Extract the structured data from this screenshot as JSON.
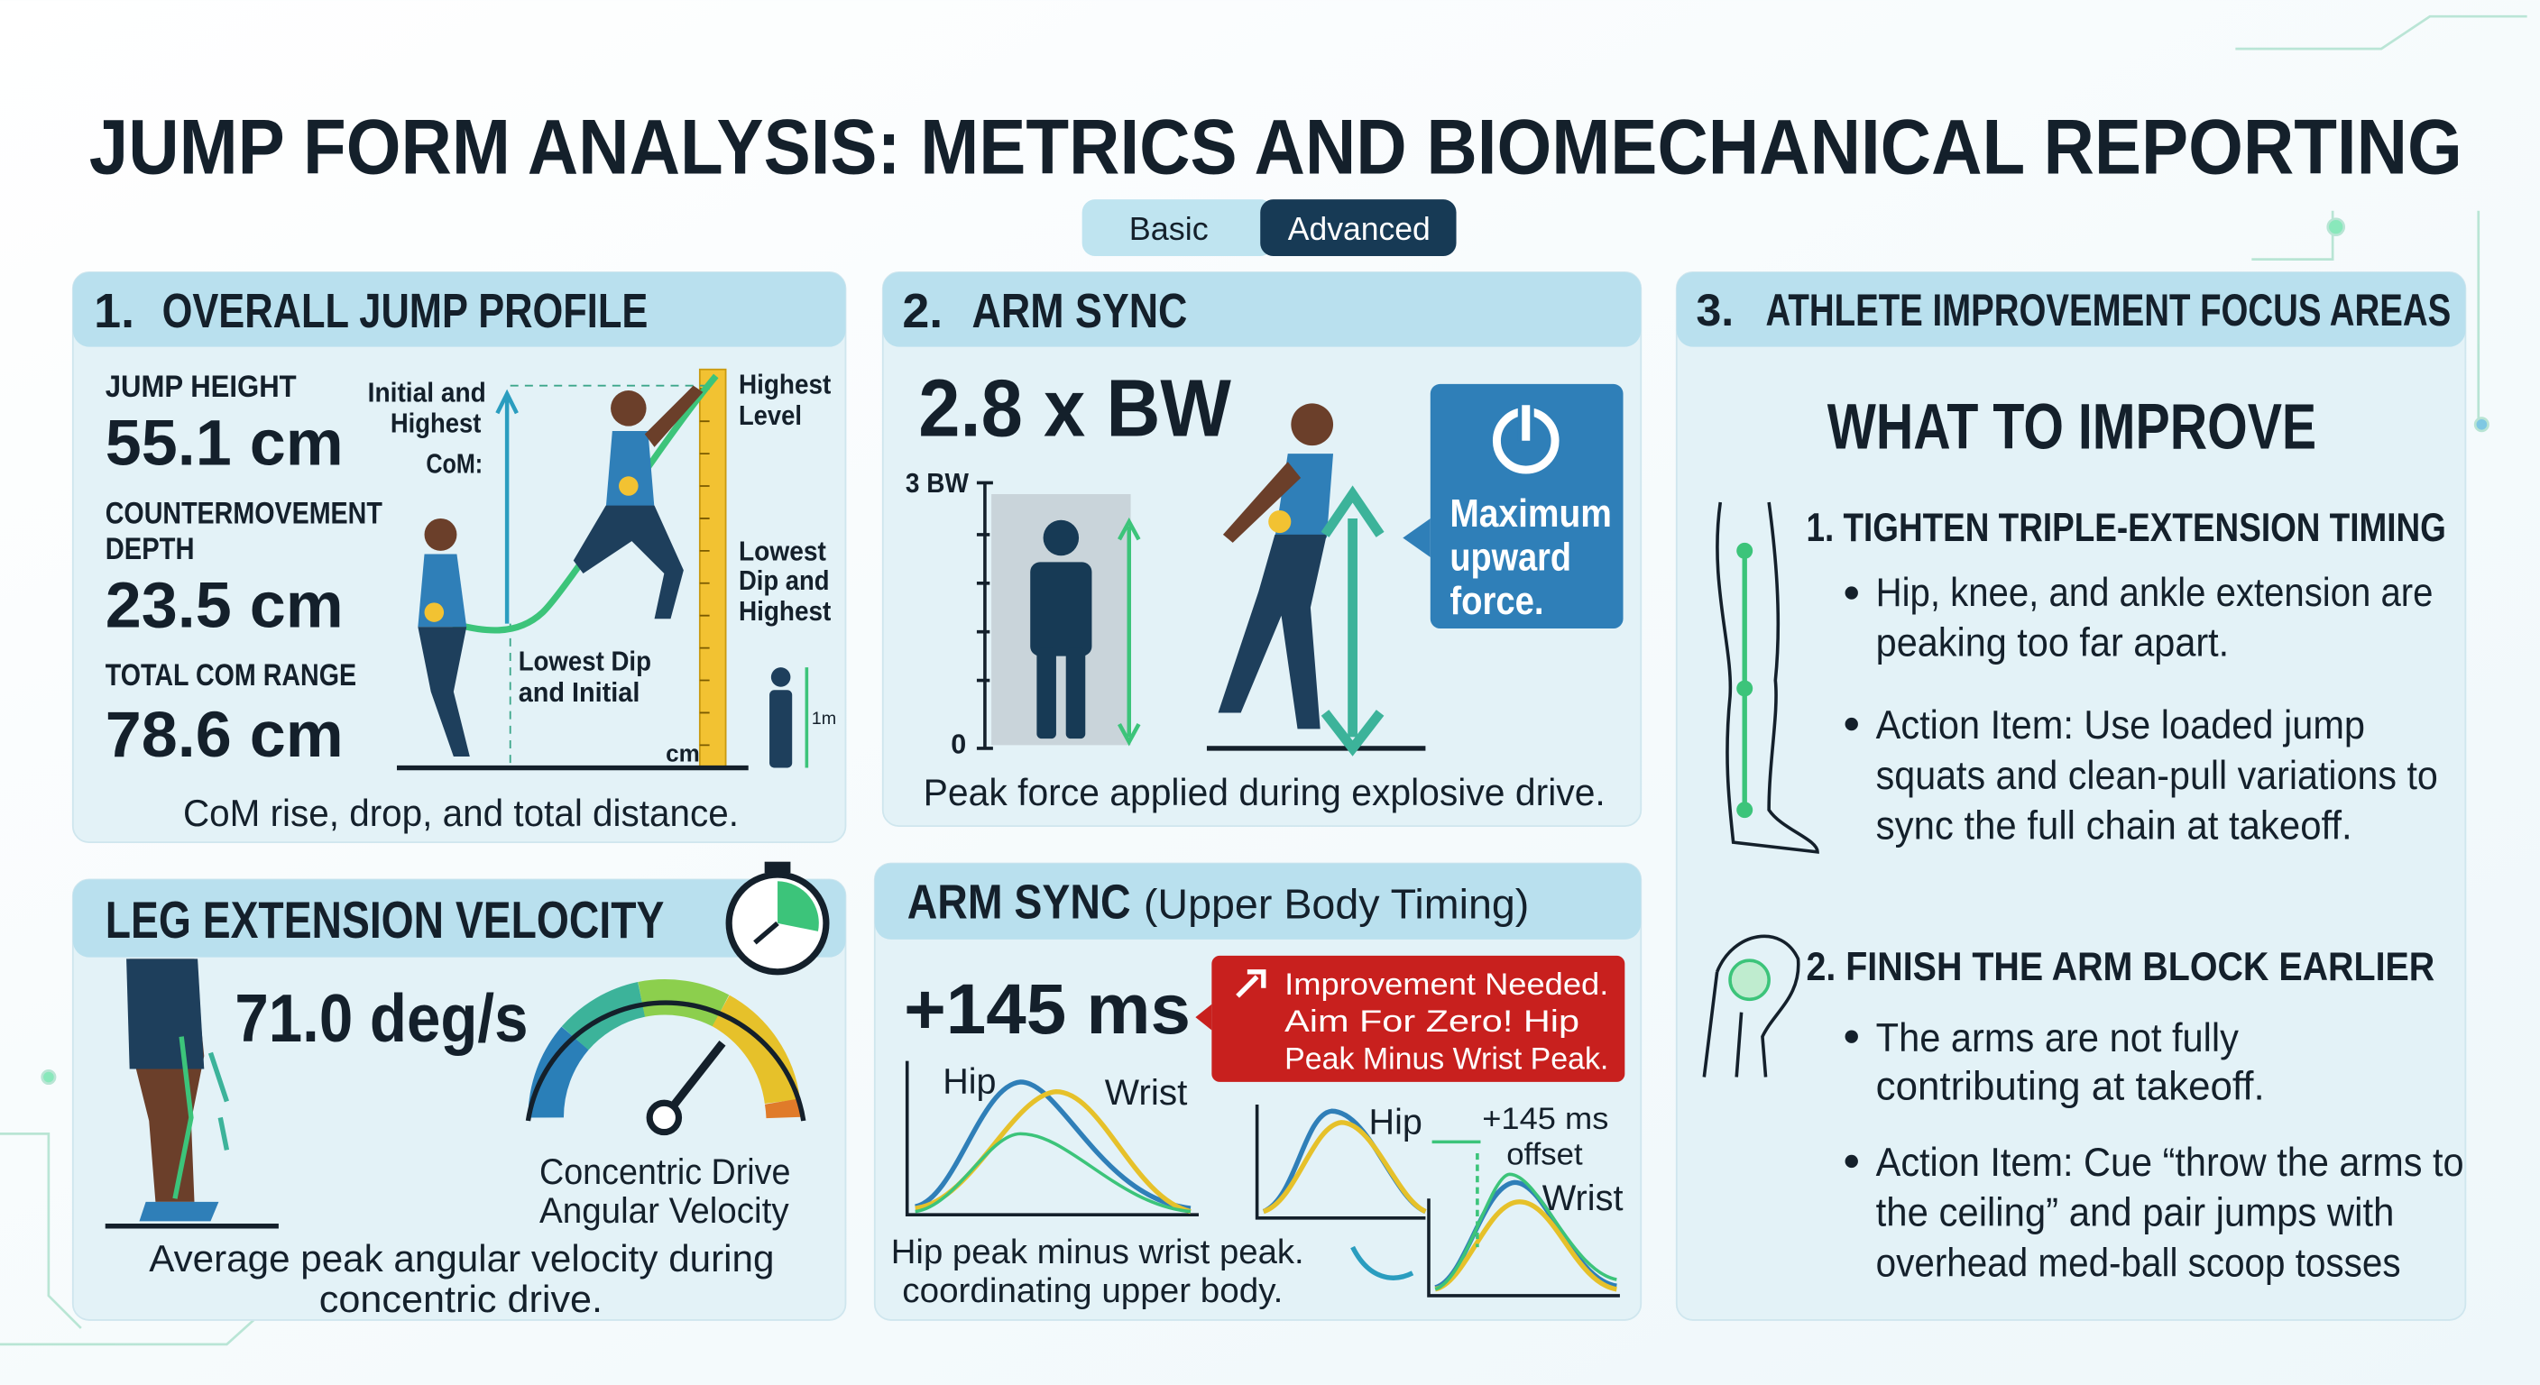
{
  "title": "JUMP FORM ANALYSIS: METRICS AND BIOMECHANICAL REPORTING",
  "mode_toggle": [
    "Basic",
    "Advanced"
  ],
  "overall_jump_profile": {
    "number": "1.",
    "title": "OVERALL JUMP PROFILE",
    "metrics": [
      {
        "label": [
          "JUMP HEIGHT"
        ],
        "value": "55.1 cm"
      },
      {
        "label": [
          "COUNTERMOVEMENT",
          "DEPTH"
        ],
        "value": "23.5 cm"
      },
      {
        "label": [
          "TOTAL COM RANGE"
        ],
        "value": "78.6 cm"
      }
    ],
    "annotations": [
      [
        "Initial and",
        "Highest",
        "CoM:"
      ],
      [
        "Highest",
        "Level"
      ],
      [
        "Lowest",
        "Dip and",
        "Highest"
      ],
      [
        "Lowest Dip",
        "and Initial"
      ],
      [
        "cm"
      ],
      [
        "1m"
      ]
    ],
    "caption": "CoM rise, drop, and total distance."
  },
  "arm_sync_force": {
    "number": "2.",
    "title": "ARM SYNC",
    "value": "2.8 x BW",
    "axis_labels": [
      "3 BW",
      "0"
    ],
    "callout": [
      "Maximum",
      "upward",
      "force."
    ],
    "caption": "Peak force applied during explosive drive."
  },
  "improvement_focus": {
    "number": "3.",
    "title": "ATHLETE IMPROVEMENT FOCUS AREAS",
    "heading": "WHAT TO IMPROVE",
    "items": [
      {
        "title": "1. TIGHTEN TRIPLE-EXTENSION TIMING",
        "bullets": [
          [
            "Hip, knee, and ankle extension are",
            "peaking too far apart."
          ],
          [
            "Action Item: Use loaded jump",
            "squats and clean-pull variations to",
            "sync the full chain at takeoff."
          ]
        ]
      },
      {
        "title": "2. FINISH THE ARM BLOCK EARLIER",
        "bullets": [
          [
            "The arms are not fully",
            "contributing at takeoff."
          ],
          [
            "Action Item: Cue “throw the arms to",
            "the ceiling” and pair jumps with",
            "overhead med-ball scoop tosses"
          ]
        ]
      }
    ]
  },
  "leg_extension_velocity": {
    "title": "LEG EXTENSION VELOCITY",
    "value": "71.0 deg/s",
    "gauge_label": [
      "Concentric Drive",
      "Angular Velocity"
    ],
    "caption": [
      "Average peak angular velocity during",
      "concentric drive."
    ]
  },
  "arm_sync_timing": {
    "title": "ARM SYNC",
    "subtitle": "(Upper Body Timing)",
    "value": "+145 ms",
    "alert": [
      "Improvement Needed.",
      "Aim For Zero! Hip",
      "Peak Minus Wrist Peak."
    ],
    "chart_labels": [
      "Hip",
      "Wrist"
    ],
    "offset_chart_labels": [
      "Hip",
      "+145 ms",
      "offset",
      "Wrist"
    ],
    "caption": [
      "Hip peak minus wrist peak.",
      "coordinating upper body."
    ]
  }
}
